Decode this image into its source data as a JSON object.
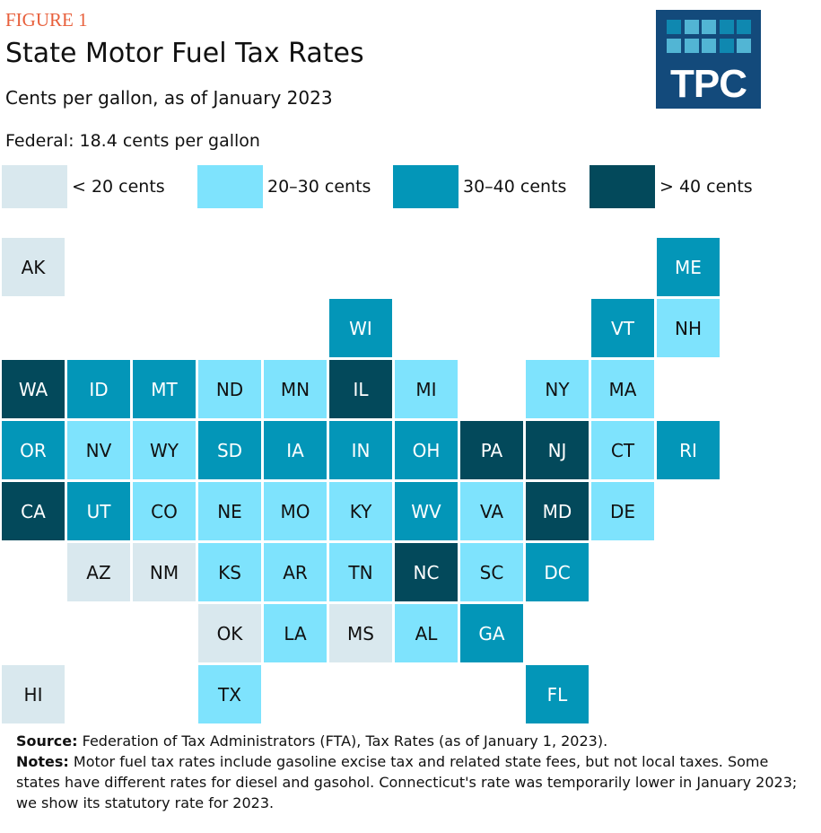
{
  "figure_label": "FIGURE 1",
  "logo_text": "TPC",
  "chart_data": {
    "type": "tile-map",
    "title": "State Motor Fuel Tax Rates",
    "subtitle": "Cents per gallon, as of January 2023",
    "federal_note": "Federal: 18.4 cents per gallon",
    "legend": [
      {
        "label": "< 20 cents",
        "color": "#d9e8ee",
        "text_color": "#111111"
      },
      {
        "label": "20–30 cents",
        "color": "#7ee3fd",
        "text_color": "#111111"
      },
      {
        "label": "30–40 cents",
        "color": "#0396b8",
        "text_color": "#ffffff"
      },
      {
        "label": "> 40 cents",
        "color": "#03495b",
        "text_color": "#ffffff"
      }
    ],
    "states": [
      {
        "abbr": "AK",
        "col": 0,
        "row": 0,
        "category": 0
      },
      {
        "abbr": "ME",
        "col": 10,
        "row": 0,
        "category": 2
      },
      {
        "abbr": "WI",
        "col": 5,
        "row": 1,
        "category": 2
      },
      {
        "abbr": "VT",
        "col": 9,
        "row": 1,
        "category": 2
      },
      {
        "abbr": "NH",
        "col": 10,
        "row": 1,
        "category": 1
      },
      {
        "abbr": "WA",
        "col": 0,
        "row": 2,
        "category": 3
      },
      {
        "abbr": "ID",
        "col": 1,
        "row": 2,
        "category": 2
      },
      {
        "abbr": "MT",
        "col": 2,
        "row": 2,
        "category": 2
      },
      {
        "abbr": "ND",
        "col": 3,
        "row": 2,
        "category": 1
      },
      {
        "abbr": "MN",
        "col": 4,
        "row": 2,
        "category": 1
      },
      {
        "abbr": "IL",
        "col": 5,
        "row": 2,
        "category": 3
      },
      {
        "abbr": "MI",
        "col": 6,
        "row": 2,
        "category": 1
      },
      {
        "abbr": "NY",
        "col": 8,
        "row": 2,
        "category": 1
      },
      {
        "abbr": "MA",
        "col": 9,
        "row": 2,
        "category": 1
      },
      {
        "abbr": "OR",
        "col": 0,
        "row": 3,
        "category": 2
      },
      {
        "abbr": "NV",
        "col": 1,
        "row": 3,
        "category": 1
      },
      {
        "abbr": "WY",
        "col": 2,
        "row": 3,
        "category": 1
      },
      {
        "abbr": "SD",
        "col": 3,
        "row": 3,
        "category": 2
      },
      {
        "abbr": "IA",
        "col": 4,
        "row": 3,
        "category": 2
      },
      {
        "abbr": "IN",
        "col": 5,
        "row": 3,
        "category": 2
      },
      {
        "abbr": "OH",
        "col": 6,
        "row": 3,
        "category": 2
      },
      {
        "abbr": "PA",
        "col": 7,
        "row": 3,
        "category": 3
      },
      {
        "abbr": "NJ",
        "col": 8,
        "row": 3,
        "category": 3
      },
      {
        "abbr": "CT",
        "col": 9,
        "row": 3,
        "category": 1
      },
      {
        "abbr": "RI",
        "col": 10,
        "row": 3,
        "category": 2
      },
      {
        "abbr": "CA",
        "col": 0,
        "row": 4,
        "category": 3
      },
      {
        "abbr": "UT",
        "col": 1,
        "row": 4,
        "category": 2
      },
      {
        "abbr": "CO",
        "col": 2,
        "row": 4,
        "category": 1
      },
      {
        "abbr": "NE",
        "col": 3,
        "row": 4,
        "category": 1
      },
      {
        "abbr": "MO",
        "col": 4,
        "row": 4,
        "category": 1
      },
      {
        "abbr": "KY",
        "col": 5,
        "row": 4,
        "category": 1
      },
      {
        "abbr": "WV",
        "col": 6,
        "row": 4,
        "category": 2
      },
      {
        "abbr": "VA",
        "col": 7,
        "row": 4,
        "category": 1
      },
      {
        "abbr": "MD",
        "col": 8,
        "row": 4,
        "category": 3
      },
      {
        "abbr": "DE",
        "col": 9,
        "row": 4,
        "category": 1
      },
      {
        "abbr": "AZ",
        "col": 1,
        "row": 5,
        "category": 0
      },
      {
        "abbr": "NM",
        "col": 2,
        "row": 5,
        "category": 0
      },
      {
        "abbr": "KS",
        "col": 3,
        "row": 5,
        "category": 1
      },
      {
        "abbr": "AR",
        "col": 4,
        "row": 5,
        "category": 1
      },
      {
        "abbr": "TN",
        "col": 5,
        "row": 5,
        "category": 1
      },
      {
        "abbr": "NC",
        "col": 6,
        "row": 5,
        "category": 3
      },
      {
        "abbr": "SC",
        "col": 7,
        "row": 5,
        "category": 1
      },
      {
        "abbr": "DC",
        "col": 8,
        "row": 5,
        "category": 2
      },
      {
        "abbr": "OK",
        "col": 3,
        "row": 6,
        "category": 0
      },
      {
        "abbr": "LA",
        "col": 4,
        "row": 6,
        "category": 1
      },
      {
        "abbr": "MS",
        "col": 5,
        "row": 6,
        "category": 0
      },
      {
        "abbr": "AL",
        "col": 6,
        "row": 6,
        "category": 1
      },
      {
        "abbr": "GA",
        "col": 7,
        "row": 6,
        "category": 2
      },
      {
        "abbr": "HI",
        "col": 0,
        "row": 7,
        "category": 0
      },
      {
        "abbr": "TX",
        "col": 3,
        "row": 7,
        "category": 1
      },
      {
        "abbr": "FL",
        "col": 8,
        "row": 7,
        "category": 2
      }
    ]
  },
  "notes": {
    "source_label": "Source:",
    "source_text": " Federation of Tax Administrators (FTA), Tax Rates (as of January 1, 2023).",
    "notes_label": "Notes:",
    "notes_text": " Motor fuel tax rates include gasoline excise tax and related state fees, but not local taxes. Some states have different rates for diesel and gasohol. Connecticut's rate was temporarily lower in January 2023; we  show its statutory rate for 2023."
  }
}
